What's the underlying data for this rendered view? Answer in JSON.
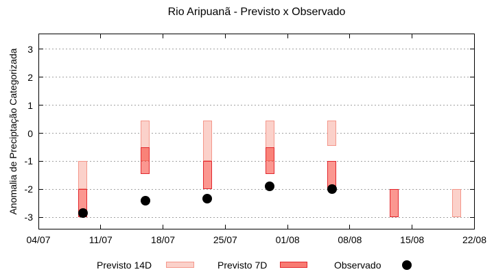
{
  "title": "Rio Aripuanã - Previsto x Observado",
  "colors": {
    "previsto_14d_fill": "#fbd1ca",
    "previsto_14d_border": "#f4968a",
    "previsto_7d_fill": "rgba(248,65,52,0.55)",
    "previsto_7d_legend_fill": "#f87a72",
    "previsto_7d_border": "#e2262c",
    "observado": "#000000",
    "grid": "#a0a0a0",
    "axis": "#000000"
  },
  "chart_data": {
    "type": "bar",
    "title": "Rio Aripuanã - Previsto x Observado",
    "xlabel": "",
    "ylabel": "Anomalia de Preciptação Categorizada",
    "ylim": [
      -3.45,
      3.55
    ],
    "grid": "horizontal-dotted",
    "legend_position": "bottom",
    "y_ticks": [
      3,
      2,
      1,
      0,
      -1,
      -2,
      -3
    ],
    "x_axis": {
      "tick_labels": [
        "04/07",
        "11/07",
        "18/07",
        "25/07",
        "01/08",
        "08/08",
        "15/08",
        "22/08"
      ],
      "tick_days": [
        0,
        7,
        14,
        21,
        28,
        35,
        42,
        49
      ],
      "span_days": 49
    },
    "series": [
      {
        "name": "Previsto 14D",
        "type": "range-bar",
        "bars": [
          {
            "date": "09/07",
            "day": 5,
            "high": -1.0,
            "low": -2.0
          },
          {
            "date": "16/07",
            "day": 12,
            "high": 0.45,
            "low": -1.0
          },
          {
            "date": "23/07",
            "day": 19,
            "high": 0.45,
            "low": -1.0
          },
          {
            "date": "30/07",
            "day": 26,
            "high": 0.45,
            "low": -1.0
          },
          {
            "date": "06/08",
            "day": 33,
            "high": 0.45,
            "low": -0.45
          },
          {
            "date": "20/08",
            "day": 47,
            "high": -2.0,
            "low": -3.0
          }
        ]
      },
      {
        "name": "Previsto 7D",
        "type": "range-bar",
        "bars": [
          {
            "date": "09/07",
            "day": 5,
            "high": -2.0,
            "low": -3.0
          },
          {
            "date": "16/07",
            "day": 12,
            "high": -0.5,
            "low": -1.45
          },
          {
            "date": "23/07",
            "day": 19,
            "high": -1.0,
            "low": -2.0
          },
          {
            "date": "30/07",
            "day": 26,
            "high": -0.5,
            "low": -1.45
          },
          {
            "date": "06/08",
            "day": 33,
            "high": -1.0,
            "low": -2.0
          },
          {
            "date": "13/08",
            "day": 40,
            "high": -2.0,
            "low": -3.0
          }
        ]
      },
      {
        "name": "Observado",
        "type": "scatter",
        "points": [
          {
            "date": "09/07",
            "day": 5,
            "value": -2.85
          },
          {
            "date": "16/07",
            "day": 12,
            "value": -2.4
          },
          {
            "date": "23/07",
            "day": 19,
            "value": -2.35
          },
          {
            "date": "30/07",
            "day": 26,
            "value": -1.9
          },
          {
            "date": "06/08",
            "day": 33,
            "value": -2.0
          }
        ]
      }
    ]
  }
}
